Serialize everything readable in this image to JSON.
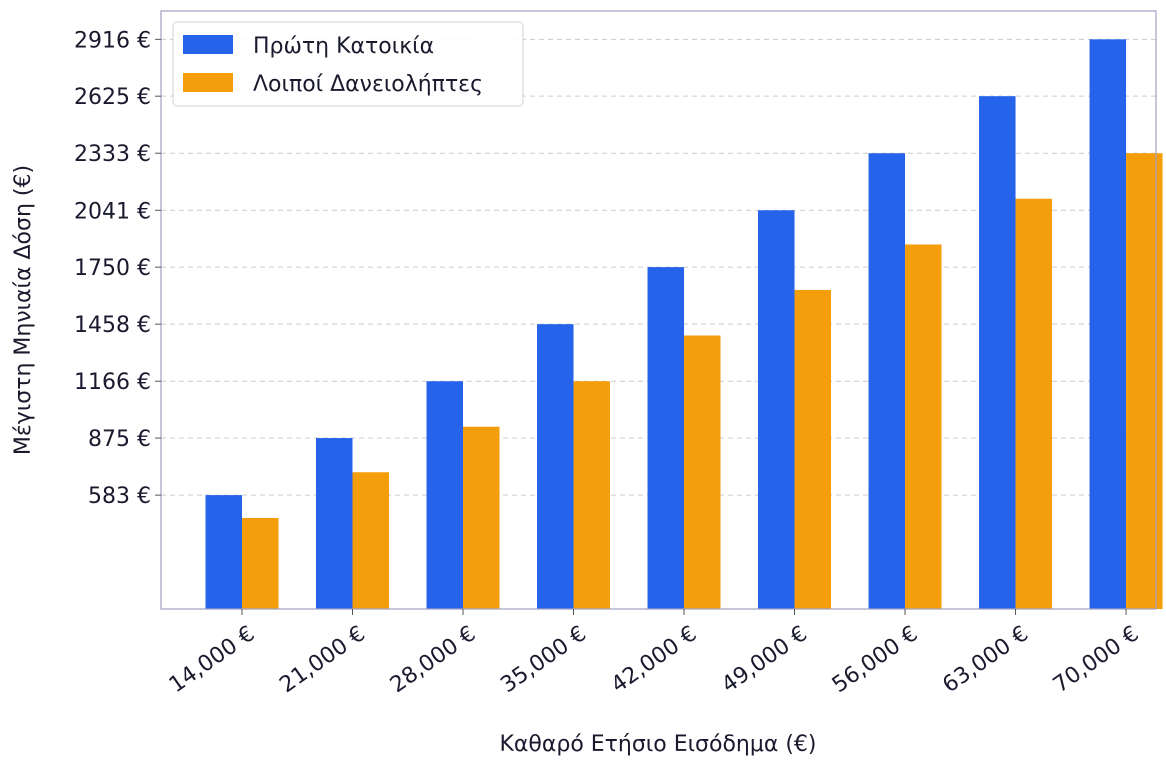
{
  "chart_data": {
    "type": "bar",
    "title": "",
    "xlabel": "Καθαρό Ετήσιο Εισόδημα (€)",
    "ylabel": "Μέγιστη Μηνιαία Δόση (€)",
    "categories": [
      "14,000 €",
      "21,000 €",
      "28,000 €",
      "35,000 €",
      "42,000 €",
      "49,000 €",
      "56,000 €",
      "63,000 €",
      "70,000 €"
    ],
    "series": [
      {
        "name": "Πρώτη Κατοικία",
        "color": "#2563eb",
        "values": [
          583,
          875,
          1166,
          1458,
          1750,
          2041,
          2333,
          2625,
          2916
        ]
      },
      {
        "name": "Λοιποί Δανειολήπτες",
        "color": "#f59e0b",
        "values": [
          466,
          700,
          933,
          1166,
          1400,
          1633,
          1866,
          2100,
          2333
        ]
      }
    ],
    "yticks": [
      583,
      875,
      1166,
      1458,
      1750,
      2041,
      2333,
      2625,
      2916
    ],
    "ytick_labels": [
      "583 €",
      "875 €",
      "1166 €",
      "1458 €",
      "1750 €",
      "2041 €",
      "2333 €",
      "2625 €",
      "2916 €"
    ],
    "ylim": [
      0,
      3061
    ],
    "grid": "y-dashed",
    "legend_position": "top-left"
  }
}
